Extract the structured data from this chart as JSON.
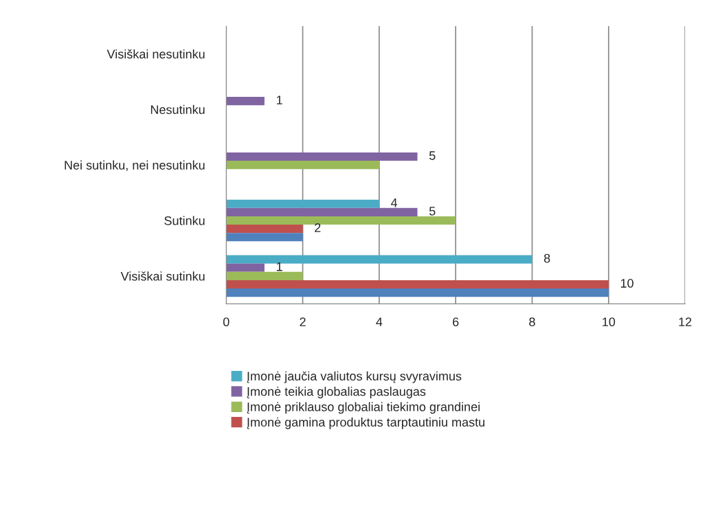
{
  "chart_data": {
    "type": "bar",
    "orientation": "horizontal",
    "categories": [
      "Visiškai nesutinku",
      "Nesutinku",
      "Nei sutinku, nei nesutinku",
      "Sutinku",
      "Visiškai sutinku"
    ],
    "series": [
      {
        "name": "Įmonė jaučia valiutos kursų svyravimus",
        "color": "#4bacc6",
        "values": [
          null,
          null,
          null,
          4,
          8
        ],
        "value_labels": [
          null,
          null,
          null,
          "4",
          "8"
        ]
      },
      {
        "name": "Įmonė teikia globalias paslaugas",
        "color": "#8064a2",
        "values": [
          null,
          1,
          5,
          5,
          1
        ],
        "value_labels": [
          null,
          "1",
          "5",
          "5",
          "1"
        ]
      },
      {
        "name": "Įmonė priklauso globaliai tiekimo grandinei",
        "color": "#9bbb59",
        "values": [
          null,
          null,
          4,
          6,
          2
        ],
        "value_labels": [
          null,
          null,
          null,
          null,
          null
        ]
      },
      {
        "name": "Įmonė gamina produktus tarptautiniu mastu",
        "color": "#c0504d",
        "values": [
          null,
          null,
          null,
          2,
          10
        ],
        "value_labels": [
          null,
          null,
          null,
          "2",
          "10"
        ]
      },
      {
        "color": "#4f81bd",
        "values": [
          null,
          null,
          null,
          2,
          10
        ],
        "value_labels": [
          null,
          null,
          null,
          null,
          null
        ]
      }
    ],
    "xlim": [
      0,
      12
    ],
    "xticks": [
      0,
      2,
      4,
      6,
      8,
      10,
      12
    ],
    "grid": "x",
    "legend": "bottom"
  }
}
